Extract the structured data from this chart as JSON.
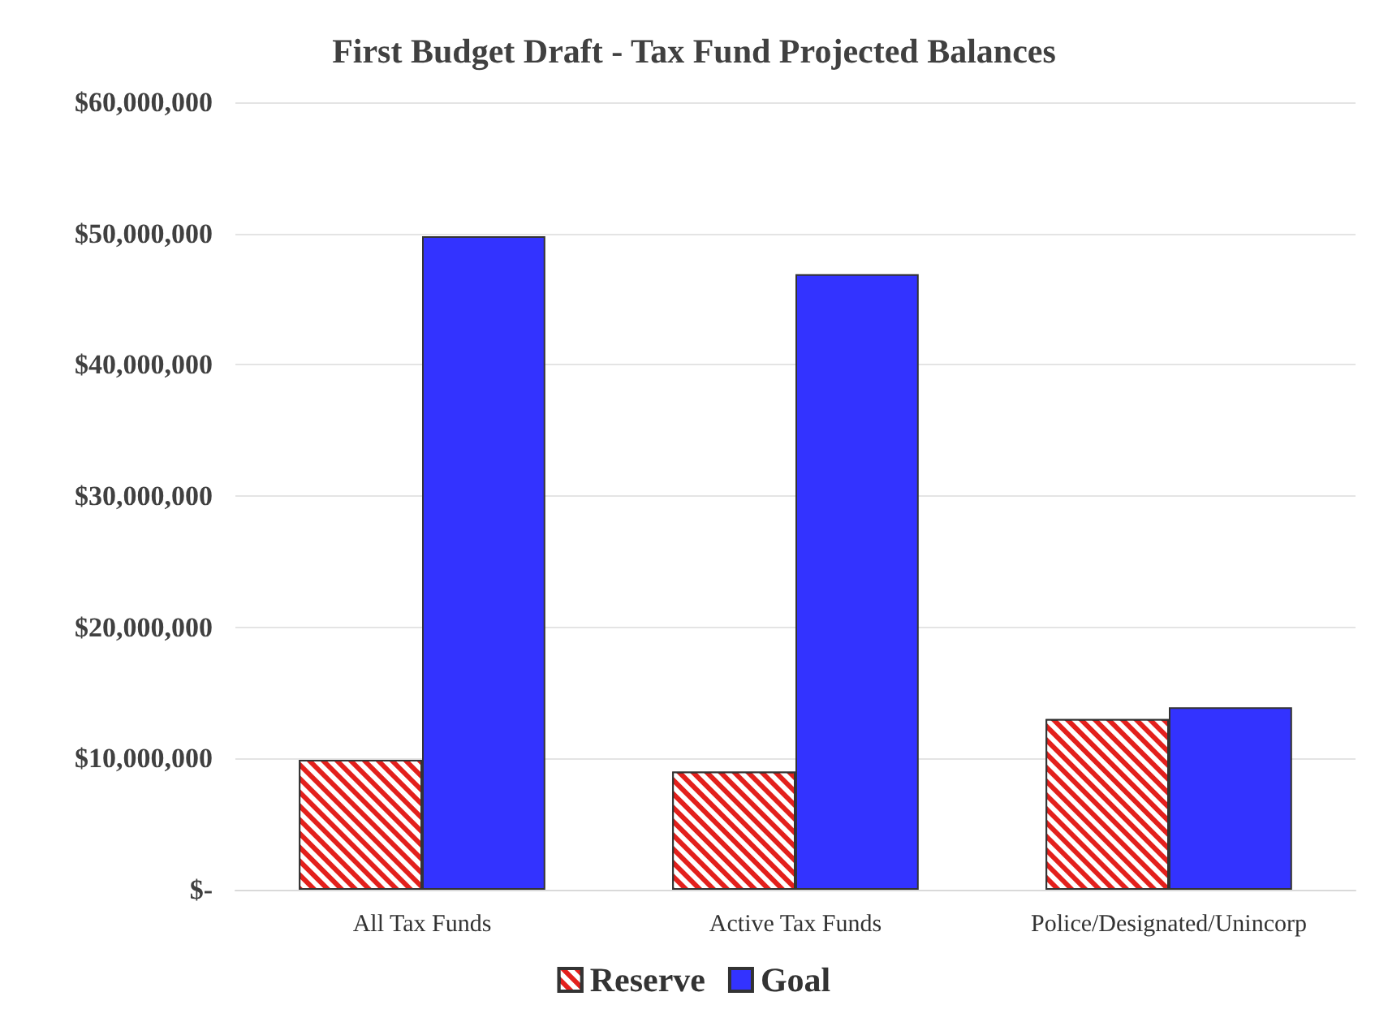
{
  "chart_data": {
    "type": "bar",
    "title": "First Budget Draft - Tax Fund Projected Balances",
    "categories": [
      "All Tax Funds",
      "Active Tax Funds",
      "Police/Designated/Unincorp"
    ],
    "series": [
      {
        "name": "Reserve",
        "color": "#e3201c",
        "values": [
          9900000,
          9000000,
          13000000
        ]
      },
      {
        "name": "Goal",
        "color": "#3333ff",
        "values": [
          49800000,
          46900000,
          13900000
        ]
      }
    ],
    "ylim": [
      0,
      60000000
    ],
    "yticks": [
      {
        "value": 0,
        "label": "$-"
      },
      {
        "value": 10000000,
        "label": "$10,000,000"
      },
      {
        "value": 20000000,
        "label": "$20,000,000"
      },
      {
        "value": 30000000,
        "label": "$30,000,000"
      },
      {
        "value": 40000000,
        "label": "$40,000,000"
      },
      {
        "value": 50000000,
        "label": "$50,000,000"
      },
      {
        "value": 60000000,
        "label": "$60,000,000"
      }
    ],
    "grid": "y",
    "legend": "bottom"
  }
}
